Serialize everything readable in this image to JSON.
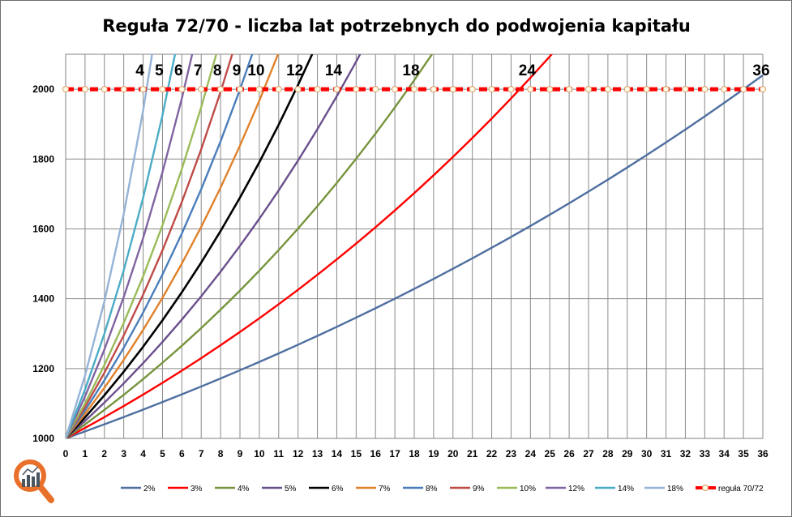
{
  "chart_data": {
    "type": "line",
    "title": "Reguła 72/70 - liczba lat potrzebnych do podwojenia kapitału",
    "xlabel": "",
    "ylabel": "",
    "xlim": [
      0,
      36
    ],
    "ylim": [
      1000,
      2100
    ],
    "x_ticks": [
      0,
      1,
      2,
      3,
      4,
      5,
      6,
      7,
      8,
      9,
      10,
      11,
      12,
      13,
      14,
      15,
      16,
      17,
      18,
      19,
      20,
      21,
      22,
      23,
      24,
      25,
      26,
      27,
      28,
      29,
      30,
      31,
      32,
      33,
      34,
      35,
      36
    ],
    "y_ticks": [
      1000,
      1200,
      1400,
      1600,
      1800,
      2000
    ],
    "grid": true,
    "legend_position": "bottom",
    "principal": 1000,
    "series": [
      {
        "name": "2%",
        "rate": 0.02,
        "color": "#4F6FA0"
      },
      {
        "name": "3%",
        "rate": 0.03,
        "color": "#FF0000"
      },
      {
        "name": "4%",
        "rate": 0.04,
        "color": "#77933C"
      },
      {
        "name": "5%",
        "rate": 0.05,
        "color": "#6A4F8C"
      },
      {
        "name": "6%",
        "rate": 0.06,
        "color": "#000000"
      },
      {
        "name": "7%",
        "rate": 0.07,
        "color": "#E0812B"
      },
      {
        "name": "8%",
        "rate": 0.08,
        "color": "#4A7EBB"
      },
      {
        "name": "9%",
        "rate": 0.09,
        "color": "#BE4B48"
      },
      {
        "name": "10%",
        "rate": 0.1,
        "color": "#9BBB59"
      },
      {
        "name": "12%",
        "rate": 0.12,
        "color": "#8064A2"
      },
      {
        "name": "14%",
        "rate": 0.14,
        "color": "#4BACC6"
      },
      {
        "name": "18%",
        "rate": 0.18,
        "color": "#95B3D7"
      }
    ],
    "rule_series": {
      "name": "reguła 70/72",
      "value": 2000,
      "color": "#FF0000",
      "marker_fill": "#FFFDE8",
      "marker_stroke": "#D89A66"
    },
    "annotations": [
      {
        "text": "4",
        "x": 4
      },
      {
        "text": "5",
        "x": 5
      },
      {
        "text": "6",
        "x": 6
      },
      {
        "text": "7",
        "x": 7
      },
      {
        "text": "8",
        "x": 8
      },
      {
        "text": "9",
        "x": 9
      },
      {
        "text": "10",
        "x": 10
      },
      {
        "text": "12",
        "x": 12
      },
      {
        "text": "14",
        "x": 14
      },
      {
        "text": "18",
        "x": 18
      },
      {
        "text": "24",
        "x": 24
      },
      {
        "text": "36",
        "x": 36
      }
    ]
  },
  "logo": {
    "name": "magnifier-chart-logo",
    "ring_color": "#E8702A",
    "bar_color": "#4A5560"
  }
}
